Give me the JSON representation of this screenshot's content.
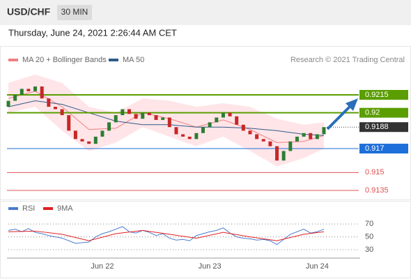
{
  "header": {
    "symbol": "USD/CHF",
    "timeframe": "30 MIN",
    "datetime": "Thursday, June 24, 2021 2:26:44 AM CET"
  },
  "chart_data": [
    {
      "type": "candlestick",
      "legend": [
        "MA 20 + Bollinger Bands",
        "MA 50"
      ],
      "legend_colors": [
        "#f08080",
        "#2f5a8a"
      ],
      "source": "Research © 2021 Trading Central",
      "categories": [
        null,
        null,
        null,
        null,
        null,
        null,
        null,
        null,
        null,
        null,
        null,
        null,
        null,
        null,
        "Jun 22",
        null,
        null,
        null,
        null,
        null,
        null,
        null,
        null,
        null,
        null,
        null,
        null,
        null,
        null,
        null,
        "Jun 23",
        null,
        null,
        null,
        null,
        null,
        null,
        null,
        null,
        null,
        null,
        null,
        null,
        null,
        null,
        null,
        "Jun 24",
        null
      ],
      "open": [
        0.9205,
        0.921,
        0.9215,
        0.922,
        0.9218,
        0.9222,
        0.9212,
        0.9205,
        0.9203,
        0.9198,
        0.9185,
        0.9178,
        0.9176,
        0.9174,
        0.918,
        0.9185,
        0.9192,
        0.9198,
        0.9203,
        0.9199,
        0.9195,
        0.92,
        0.9198,
        0.9194,
        0.9196,
        0.9188,
        0.9182,
        0.918,
        0.9178,
        0.9183,
        0.9188,
        0.9192,
        0.9196,
        0.92,
        0.9197,
        0.919,
        0.9185,
        0.9182,
        0.9178,
        0.9176,
        0.9172,
        0.916,
        0.9168,
        0.9176,
        0.918,
        0.9183,
        0.9178,
        0.9182
      ],
      "close": [
        0.921,
        0.9215,
        0.922,
        0.9218,
        0.9222,
        0.9212,
        0.9205,
        0.9203,
        0.9198,
        0.9185,
        0.9178,
        0.9176,
        0.9174,
        0.918,
        0.9185,
        0.9192,
        0.9198,
        0.9203,
        0.9199,
        0.9195,
        0.92,
        0.9198,
        0.9194,
        0.9196,
        0.9188,
        0.9182,
        0.918,
        0.9178,
        0.9183,
        0.9188,
        0.9192,
        0.9196,
        0.92,
        0.9197,
        0.919,
        0.9185,
        0.9182,
        0.9178,
        0.9176,
        0.9172,
        0.916,
        0.9168,
        0.9176,
        0.918,
        0.9183,
        0.9178,
        0.9182,
        0.9188
      ],
      "up_color": "#2e7d32",
      "down_color": "#c62828",
      "overlay_x": [
        0,
        4,
        8,
        12,
        16,
        20,
        24,
        28,
        32,
        36,
        40,
        44,
        47
      ],
      "ma20": [
        0.9212,
        0.9218,
        0.9205,
        0.9186,
        0.9187,
        0.92,
        0.9195,
        0.9188,
        0.9194,
        0.9186,
        0.9175,
        0.9176,
        0.9181
      ],
      "ma50": [
        0.9205,
        0.921,
        0.9207,
        0.92,
        0.9193,
        0.919,
        0.919,
        0.9188,
        0.9188,
        0.9187,
        0.9185,
        0.9182,
        0.9181
      ],
      "bb_upper": [
        0.9225,
        0.9232,
        0.9225,
        0.9205,
        0.92,
        0.9212,
        0.921,
        0.9205,
        0.9208,
        0.9205,
        0.9195,
        0.919,
        0.9192
      ],
      "bb_lower": [
        0.92,
        0.9205,
        0.9185,
        0.9168,
        0.9175,
        0.9188,
        0.918,
        0.9172,
        0.918,
        0.9168,
        0.9155,
        0.9162,
        0.917
      ],
      "levels": [
        {
          "value": 0.9215,
          "color": "#5a9e00",
          "style": "resistance"
        },
        {
          "value": 0.92,
          "color": "#5a9e00",
          "style": "resistance"
        },
        {
          "value": 0.9188,
          "color": "#333333",
          "style": "last"
        },
        {
          "value": 0.917,
          "color": "#1e6fd9",
          "style": "pivot"
        },
        {
          "value": 0.915,
          "color": "#e05050",
          "style": "support"
        },
        {
          "value": 0.9135,
          "color": "#e05050",
          "style": "support"
        }
      ],
      "ylim": [
        0.9128,
        0.9236
      ]
    },
    {
      "type": "line",
      "series": [
        {
          "name": "RSI",
          "color": "#4a7bd0",
          "x": [
            0,
            1,
            2,
            3,
            4,
            5,
            6,
            7,
            8,
            9,
            10,
            11,
            12,
            13,
            14,
            15,
            16,
            17,
            18,
            19,
            20,
            21,
            22,
            23,
            24,
            25,
            26,
            27,
            28,
            29,
            30,
            31,
            32,
            33,
            34,
            35,
            36,
            37,
            38,
            39,
            40,
            41,
            42,
            43,
            44,
            45,
            46,
            47
          ],
          "values": [
            60,
            62,
            58,
            63,
            57,
            55,
            52,
            50,
            48,
            44,
            40,
            41,
            42,
            50,
            55,
            58,
            62,
            66,
            58,
            56,
            60,
            57,
            52,
            55,
            48,
            45,
            46,
            44,
            52,
            55,
            58,
            60,
            64,
            56,
            50,
            48,
            47,
            45,
            46,
            44,
            38,
            46,
            54,
            58,
            62,
            56,
            58,
            62
          ]
        },
        {
          "name": "9MA",
          "color": "#e02020",
          "x": [
            0,
            4,
            8,
            12,
            16,
            20,
            24,
            28,
            32,
            36,
            40,
            44,
            47
          ],
          "values": [
            58,
            59,
            54,
            44,
            55,
            60,
            54,
            48,
            57,
            50,
            44,
            54,
            58
          ]
        }
      ],
      "ylim": [
        17,
        93
      ],
      "yticks": [
        30,
        50,
        70
      ]
    }
  ]
}
